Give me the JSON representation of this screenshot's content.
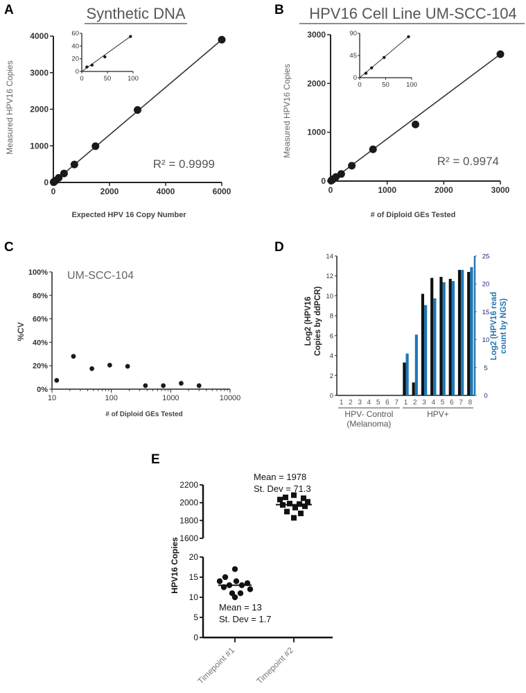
{
  "chart_data": [
    {
      "panel": "A",
      "type": "scatter",
      "title": "Synthetic DNA",
      "xlabel": "Expected HPV 16 Copy Number",
      "ylabel": "Measured HPV16 Copies",
      "xlim": [
        0,
        6000
      ],
      "ylim": [
        0,
        4000
      ],
      "xticks": [
        "0",
        "2000",
        "4000",
        "6000"
      ],
      "yticks": [
        "0",
        "1000",
        "2000",
        "3000",
        "4000"
      ],
      "annotation": "R² = 0.9999",
      "fit": [
        [
          0,
          0
        ],
        [
          6000,
          3900
        ]
      ],
      "x": [
        10,
        20,
        40,
        80,
        190,
        380,
        750,
        1500,
        3000,
        6000
      ],
      "y": [
        7,
        14,
        27,
        53,
        125,
        245,
        490,
        990,
        1980,
        3900
      ],
      "inset": {
        "xlim": [
          0,
          100
        ],
        "ylim": [
          0,
          60
        ],
        "xticks": [
          "0",
          "50",
          "100"
        ],
        "yticks": [
          "0",
          "20",
          "40",
          "60"
        ],
        "x": [
          10,
          20,
          45,
          95
        ],
        "y": [
          7,
          10,
          23,
          55
        ]
      }
    },
    {
      "panel": "B",
      "type": "scatter",
      "title": "HPV16 Cell Line UM-SCC-104",
      "xlabel": "# of Diploid GEs Tested",
      "ylabel": "Measured HPV16 Copies",
      "xlim": [
        0,
        3000
      ],
      "ylim": [
        0,
        3000
      ],
      "xticks": [
        "0",
        "1000",
        "2000",
        "3000"
      ],
      "yticks": [
        "0",
        "1000",
        "2000",
        "3000"
      ],
      "annotation": "R² = 0.9974",
      "fit": [
        [
          0,
          0
        ],
        [
          3000,
          2600
        ]
      ],
      "x": [
        12,
        23,
        47,
        94,
        188,
        375,
        750,
        1500,
        3000
      ],
      "y": [
        9,
        20,
        41,
        83,
        145,
        315,
        650,
        1160,
        2600
      ],
      "inset": {
        "xlim": [
          0,
          100
        ],
        "ylim": [
          0,
          90
        ],
        "xticks": [
          "0",
          "50",
          "100"
        ],
        "yticks": [
          "0",
          "45",
          "90"
        ],
        "x": [
          12,
          23,
          47,
          94
        ],
        "y": [
          9,
          20,
          41,
          83
        ]
      }
    },
    {
      "panel": "C",
      "type": "scatter",
      "title": "UM-SCC-104",
      "xlabel": "# of Diploid GEs Tested",
      "ylabel": "%CV",
      "xscale": "log",
      "xlim": [
        10,
        10000
      ],
      "ylim": [
        0,
        100
      ],
      "xticks": [
        "10",
        "100",
        "1000",
        "10000"
      ],
      "yticks": [
        "0%",
        "20%",
        "40%",
        "60%",
        "80%",
        "100%"
      ],
      "x": [
        12,
        23,
        47,
        94,
        188,
        375,
        750,
        1500,
        3000
      ],
      "y": [
        7.5,
        28,
        17.5,
        20.5,
        19.5,
        3,
        3,
        5,
        3
      ]
    },
    {
      "panel": "D",
      "type": "bar",
      "ylabel_left": "Log2 (HPV16 Copies by ddPCR)",
      "ylabel_right": "Log2 (HPV16 read count by NGS)",
      "categories": [
        "1",
        "2",
        "3",
        "4",
        "5",
        "6",
        "7",
        "1",
        "2",
        "3",
        "4",
        "5",
        "6",
        "7",
        "8"
      ],
      "groups": [
        {
          "label": "HPV- Control (Melanoma)",
          "count": 7
        },
        {
          "label": "HPV+",
          "count": 8
        }
      ],
      "ylim_left": [
        0,
        14
      ],
      "yticks_left": [
        "0",
        "2",
        "4",
        "6",
        "8",
        "10",
        "12",
        "14"
      ],
      "ylim_right": [
        0,
        25
      ],
      "yticks_right": [
        "0",
        "5",
        "10",
        "15",
        "20",
        "25"
      ],
      "series": [
        {
          "name": "ddPCR",
          "axis": "left",
          "color": "#111111",
          "values": [
            0,
            0,
            0,
            0,
            0,
            0,
            0,
            3.3,
            1.3,
            10.2,
            11.8,
            11.9,
            11.7,
            12.6,
            12.4
          ]
        },
        {
          "name": "NGS",
          "axis": "right",
          "color": "#1f77b4",
          "values": [
            0,
            0,
            0,
            0,
            0,
            0,
            0,
            7.5,
            10.9,
            16.2,
            17.4,
            20.3,
            20.5,
            22.5,
            23
          ]
        }
      ]
    },
    {
      "panel": "E",
      "type": "scatter",
      "ylabel": "HPV16 Copies",
      "categories": [
        "Timepoint #1",
        "Timepoint #2"
      ],
      "upper_ylim": [
        1600,
        2200
      ],
      "upper_yticks": [
        "1600",
        "1800",
        "2000",
        "2200"
      ],
      "lower_ylim": [
        0,
        20
      ],
      "lower_yticks": [
        "0",
        "5",
        "10",
        "15",
        "20"
      ],
      "series": [
        {
          "name": "Timepoint #1",
          "marker": "circle",
          "mean": 13,
          "mean_label": "Mean = 13",
          "sd_label": "St.  Dev = 1.7",
          "values": [
            17,
            15,
            14,
            14,
            13.5,
            13,
            13,
            12.5,
            12,
            11,
            11,
            10
          ]
        },
        {
          "name": "Timepoint #2",
          "marker": "square",
          "mean": 1978,
          "mean_label": "Mean = 1978",
          "sd_label": "St. Dev = 71.3",
          "values": [
            2085,
            2060,
            2050,
            2035,
            2010,
            1990,
            1985,
            1975,
            1960,
            1945,
            1900,
            1880,
            1830
          ]
        }
      ]
    }
  ],
  "panel_letters": [
    "A",
    "B",
    "C",
    "D",
    "E"
  ]
}
